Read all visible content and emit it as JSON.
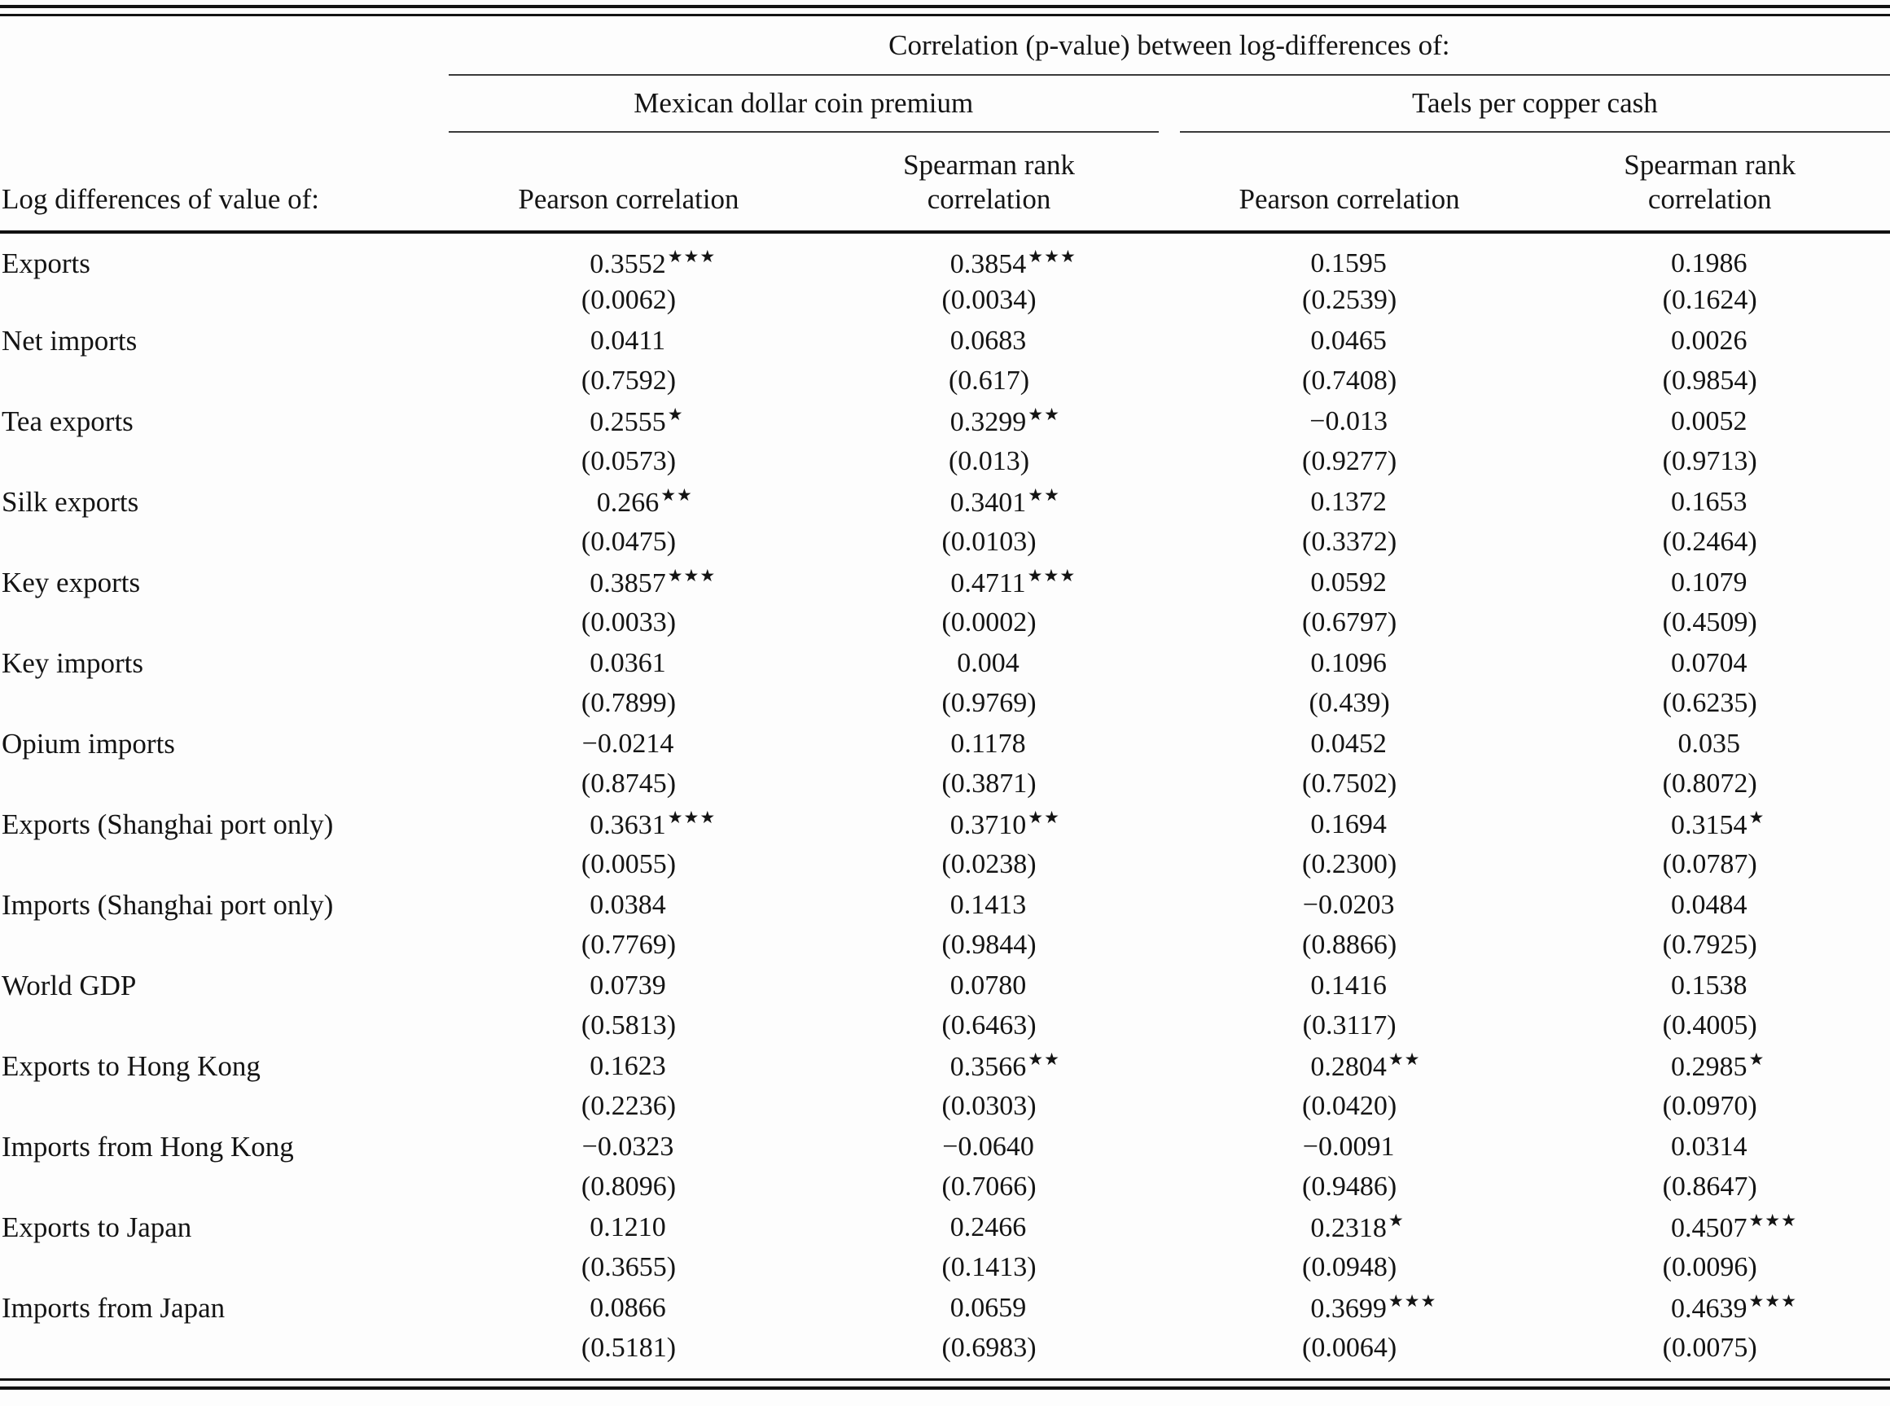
{
  "table": {
    "span_header": "Correlation (p-value) between log-differences of:",
    "stub_header": "Log differences of value of:",
    "groups": [
      {
        "label": "Mexican dollar coin premium",
        "columns": [
          "Pearson correlation",
          "Spearman rank correlation"
        ]
      },
      {
        "label": "Taels per copper cash",
        "columns": [
          "Pearson correlation",
          "Spearman rank correlation"
        ]
      }
    ],
    "rows": [
      {
        "label": "Exports",
        "cells": [
          {
            "value": "0.3552",
            "stars": "★★★",
            "p": "(0.0062)"
          },
          {
            "value": "0.3854",
            "stars": "★★★",
            "p": "(0.0034)"
          },
          {
            "value": "0.1595",
            "stars": "",
            "p": "(0.2539)"
          },
          {
            "value": "0.1986",
            "stars": "",
            "p": "(0.1624)"
          }
        ]
      },
      {
        "label": "Net imports",
        "cells": [
          {
            "value": "0.0411",
            "stars": "",
            "p": "(0.7592)"
          },
          {
            "value": "0.0683",
            "stars": "",
            "p": "(0.617)"
          },
          {
            "value": "0.0465",
            "stars": "",
            "p": "(0.7408)"
          },
          {
            "value": "0.0026",
            "stars": "",
            "p": "(0.9854)"
          }
        ]
      },
      {
        "label": "Tea exports",
        "cells": [
          {
            "value": "0.2555",
            "stars": "★",
            "p": "(0.0573)"
          },
          {
            "value": "0.3299",
            "stars": "★★",
            "p": "(0.013)"
          },
          {
            "value": "−0.013",
            "stars": "",
            "p": "(0.9277)"
          },
          {
            "value": "0.0052",
            "stars": "",
            "p": "(0.9713)"
          }
        ]
      },
      {
        "label": "Silk exports",
        "cells": [
          {
            "value": "0.266",
            "stars": "★★",
            "p": "(0.0475)"
          },
          {
            "value": "0.3401",
            "stars": "★★",
            "p": "(0.0103)"
          },
          {
            "value": "0.1372",
            "stars": "",
            "p": "(0.3372)"
          },
          {
            "value": "0.1653",
            "stars": "",
            "p": "(0.2464)"
          }
        ]
      },
      {
        "label": "Key exports",
        "cells": [
          {
            "value": "0.3857",
            "stars": "★★★",
            "p": "(0.0033)"
          },
          {
            "value": "0.4711",
            "stars": "★★★",
            "p": "(0.0002)"
          },
          {
            "value": "0.0592",
            "stars": "",
            "p": "(0.6797)"
          },
          {
            "value": "0.1079",
            "stars": "",
            "p": "(0.4509)"
          }
        ]
      },
      {
        "label": "Key imports",
        "cells": [
          {
            "value": "0.0361",
            "stars": "",
            "p": "(0.7899)"
          },
          {
            "value": "0.004",
            "stars": "",
            "p": "(0.9769)"
          },
          {
            "value": "0.1096",
            "stars": "",
            "p": "(0.439)"
          },
          {
            "value": "0.0704",
            "stars": "",
            "p": "(0.6235)"
          }
        ]
      },
      {
        "label": "Opium imports",
        "cells": [
          {
            "value": "−0.0214",
            "stars": "",
            "p": "(0.8745)"
          },
          {
            "value": "0.1178",
            "stars": "",
            "p": "(0.3871)"
          },
          {
            "value": "0.0452",
            "stars": "",
            "p": "(0.7502)"
          },
          {
            "value": "0.035",
            "stars": "",
            "p": "(0.8072)"
          }
        ]
      },
      {
        "label": "Exports (Shanghai port only)",
        "cells": [
          {
            "value": "0.3631",
            "stars": "★★★",
            "p": "(0.0055)"
          },
          {
            "value": "0.3710",
            "stars": "★★",
            "p": "(0.0238)"
          },
          {
            "value": "0.1694",
            "stars": "",
            "p": "(0.2300)"
          },
          {
            "value": "0.3154",
            "stars": "★",
            "p": "(0.0787)"
          }
        ]
      },
      {
        "label": "Imports (Shanghai port only)",
        "cells": [
          {
            "value": "0.0384",
            "stars": "",
            "p": "(0.7769)"
          },
          {
            "value": "0.1413",
            "stars": "",
            "p": "(0.9844)"
          },
          {
            "value": "−0.0203",
            "stars": "",
            "p": "(0.8866)"
          },
          {
            "value": "0.0484",
            "stars": "",
            "p": "(0.7925)"
          }
        ]
      },
      {
        "label": "World GDP",
        "cells": [
          {
            "value": "0.0739",
            "stars": "",
            "p": "(0.5813)"
          },
          {
            "value": "0.0780",
            "stars": "",
            "p": "(0.6463)"
          },
          {
            "value": "0.1416",
            "stars": "",
            "p": "(0.3117)"
          },
          {
            "value": "0.1538",
            "stars": "",
            "p": "(0.4005)"
          }
        ]
      },
      {
        "label": "Exports to Hong Kong",
        "cells": [
          {
            "value": "0.1623",
            "stars": "",
            "p": "(0.2236)"
          },
          {
            "value": "0.3566",
            "stars": "★★",
            "p": "(0.0303)"
          },
          {
            "value": "0.2804",
            "stars": "★★",
            "p": "(0.0420)"
          },
          {
            "value": "0.2985",
            "stars": "★",
            "p": "(0.0970)"
          }
        ]
      },
      {
        "label": "Imports from Hong Kong",
        "cells": [
          {
            "value": "−0.0323",
            "stars": "",
            "p": "(0.8096)"
          },
          {
            "value": "−0.0640",
            "stars": "",
            "p": "(0.7066)"
          },
          {
            "value": "−0.0091",
            "stars": "",
            "p": "(0.9486)"
          },
          {
            "value": "0.0314",
            "stars": "",
            "p": "(0.8647)"
          }
        ]
      },
      {
        "label": "Exports to Japan",
        "cells": [
          {
            "value": "0.1210",
            "stars": "",
            "p": "(0.3655)"
          },
          {
            "value": "0.2466",
            "stars": "",
            "p": "(0.1413)"
          },
          {
            "value": "0.2318",
            "stars": "★",
            "p": "(0.0948)"
          },
          {
            "value": "0.4507",
            "stars": "★★★",
            "p": "(0.0096)"
          }
        ]
      },
      {
        "label": "Imports from Japan",
        "cells": [
          {
            "value": "0.0866",
            "stars": "",
            "p": "(0.5181)"
          },
          {
            "value": "0.0659",
            "stars": "",
            "p": "(0.6983)"
          },
          {
            "value": "0.3699",
            "stars": "★★★",
            "p": "(0.0064)"
          },
          {
            "value": "0.4639",
            "stars": "★★★",
            "p": "(0.0075)"
          }
        ]
      }
    ]
  }
}
